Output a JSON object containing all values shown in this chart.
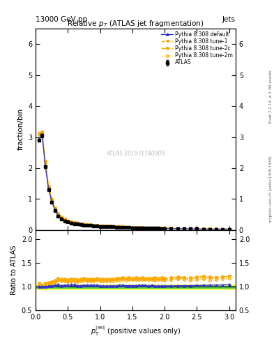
{
  "title": "Relative $p_T$ (ATLAS jet fragmentation)",
  "top_left_label": "13000 GeV pp",
  "top_right_label": "Jets",
  "ylabel_main": "fraction/bin",
  "ylabel_ratio": "Ratio to ATLAS",
  "xlabel": "$p_{\\mathrm{T}}^{\\mathrm{|rel|}}$ (positive values only)",
  "watermark": "ATLAS 2019 I1740909",
  "right_label1": "Rivet 3.1.10; ≥ 3.3M events",
  "right_label2": "mcplots.cern.ch [arXiv:1306.3436]",
  "ylim_main": [
    0,
    6.5
  ],
  "ylim_ratio": [
    0.5,
    2.2
  ],
  "xlim": [
    0,
    3.1
  ],
  "yticks_main": [
    0,
    1,
    2,
    3,
    4,
    5,
    6
  ],
  "yticks_ratio": [
    0.5,
    1.0,
    1.5,
    2.0
  ],
  "legend_entries": [
    "ATLAS",
    "Pythia 8.308 default",
    "Pythia 8.308 tune-1",
    "Pythia 8.308 tune-2c",
    "Pythia 8.308 tune-2m"
  ],
  "data_x": [
    0.05,
    0.1,
    0.15,
    0.2,
    0.25,
    0.3,
    0.35,
    0.4,
    0.45,
    0.5,
    0.55,
    0.6,
    0.65,
    0.7,
    0.75,
    0.8,
    0.85,
    0.9,
    0.95,
    1.0,
    1.05,
    1.1,
    1.15,
    1.2,
    1.25,
    1.3,
    1.35,
    1.4,
    1.45,
    1.5,
    1.55,
    1.6,
    1.65,
    1.7,
    1.75,
    1.8,
    1.85,
    1.9,
    1.95,
    2.0,
    2.1,
    2.2,
    2.3,
    2.4,
    2.5,
    2.6,
    2.7,
    2.8,
    2.9,
    3.0
  ],
  "data_y_atlas": [
    2.9,
    3.05,
    2.05,
    1.3,
    0.9,
    0.62,
    0.45,
    0.36,
    0.3,
    0.26,
    0.23,
    0.21,
    0.195,
    0.18,
    0.165,
    0.155,
    0.145,
    0.135,
    0.125,
    0.12,
    0.115,
    0.11,
    0.105,
    0.1,
    0.095,
    0.09,
    0.085,
    0.082,
    0.078,
    0.075,
    0.072,
    0.069,
    0.066,
    0.063,
    0.061,
    0.058,
    0.056,
    0.054,
    0.052,
    0.05,
    0.046,
    0.042,
    0.039,
    0.036,
    0.033,
    0.03,
    0.028,
    0.026,
    0.024,
    0.022
  ],
  "data_y_default": [
    2.92,
    3.07,
    2.07,
    1.32,
    0.92,
    0.64,
    0.47,
    0.37,
    0.31,
    0.27,
    0.24,
    0.22,
    0.2,
    0.185,
    0.17,
    0.16,
    0.15,
    0.14,
    0.13,
    0.122,
    0.117,
    0.112,
    0.107,
    0.102,
    0.097,
    0.093,
    0.088,
    0.084,
    0.08,
    0.077,
    0.074,
    0.071,
    0.068,
    0.065,
    0.062,
    0.06,
    0.057,
    0.055,
    0.053,
    0.051,
    0.047,
    0.043,
    0.04,
    0.037,
    0.034,
    0.031,
    0.029,
    0.027,
    0.025,
    0.023
  ],
  "data_y_tune1": [
    3.1,
    3.15,
    2.2,
    1.4,
    0.98,
    0.69,
    0.52,
    0.41,
    0.34,
    0.29,
    0.26,
    0.24,
    0.22,
    0.205,
    0.19,
    0.177,
    0.165,
    0.154,
    0.144,
    0.137,
    0.131,
    0.126,
    0.12,
    0.115,
    0.11,
    0.105,
    0.1,
    0.096,
    0.091,
    0.088,
    0.084,
    0.081,
    0.077,
    0.074,
    0.071,
    0.068,
    0.065,
    0.063,
    0.061,
    0.058,
    0.054,
    0.05,
    0.046,
    0.042,
    0.039,
    0.036,
    0.033,
    0.031,
    0.029,
    0.027
  ],
  "data_y_tune2c": [
    3.12,
    3.17,
    2.22,
    1.42,
    1.0,
    0.71,
    0.53,
    0.42,
    0.35,
    0.3,
    0.27,
    0.245,
    0.225,
    0.21,
    0.195,
    0.182,
    0.169,
    0.158,
    0.148,
    0.14,
    0.134,
    0.128,
    0.122,
    0.117,
    0.112,
    0.107,
    0.102,
    0.097,
    0.093,
    0.089,
    0.086,
    0.082,
    0.079,
    0.075,
    0.072,
    0.069,
    0.067,
    0.064,
    0.062,
    0.059,
    0.055,
    0.051,
    0.047,
    0.043,
    0.04,
    0.037,
    0.034,
    0.031,
    0.029,
    0.027
  ],
  "data_y_tune2m": [
    3.08,
    3.13,
    2.18,
    1.38,
    0.96,
    0.68,
    0.51,
    0.405,
    0.336,
    0.287,
    0.257,
    0.237,
    0.217,
    0.202,
    0.187,
    0.175,
    0.163,
    0.152,
    0.142,
    0.135,
    0.129,
    0.124,
    0.118,
    0.113,
    0.108,
    0.103,
    0.098,
    0.094,
    0.09,
    0.087,
    0.083,
    0.08,
    0.076,
    0.073,
    0.07,
    0.067,
    0.064,
    0.062,
    0.06,
    0.057,
    0.053,
    0.049,
    0.045,
    0.041,
    0.038,
    0.035,
    0.032,
    0.03,
    0.028,
    0.026
  ],
  "color_atlas": "#000000",
  "color_default": "#3333cc",
  "color_tune1": "#ffaa00",
  "color_tune2c": "#ffaa00",
  "color_tune2m": "#ffaa00",
  "color_band_yellow": "#ffff44",
  "color_band_green": "#44cc44",
  "atlas_error_y": [
    0.05,
    0.05,
    0.04,
    0.03,
    0.025,
    0.018,
    0.013,
    0.01,
    0.008,
    0.007,
    0.006,
    0.006,
    0.005,
    0.005,
    0.005,
    0.004,
    0.004,
    0.004,
    0.004,
    0.003,
    0.003,
    0.003,
    0.003,
    0.003,
    0.003,
    0.002,
    0.002,
    0.002,
    0.002,
    0.002,
    0.002,
    0.002,
    0.002,
    0.002,
    0.002,
    0.001,
    0.001,
    0.001,
    0.001,
    0.001,
    0.001,
    0.001,
    0.001,
    0.001,
    0.001,
    0.001,
    0.001,
    0.001,
    0.001,
    0.001
  ],
  "ratio_band_yellow": [
    0.95,
    1.05
  ],
  "ratio_band_green": [
    0.98,
    1.02
  ]
}
